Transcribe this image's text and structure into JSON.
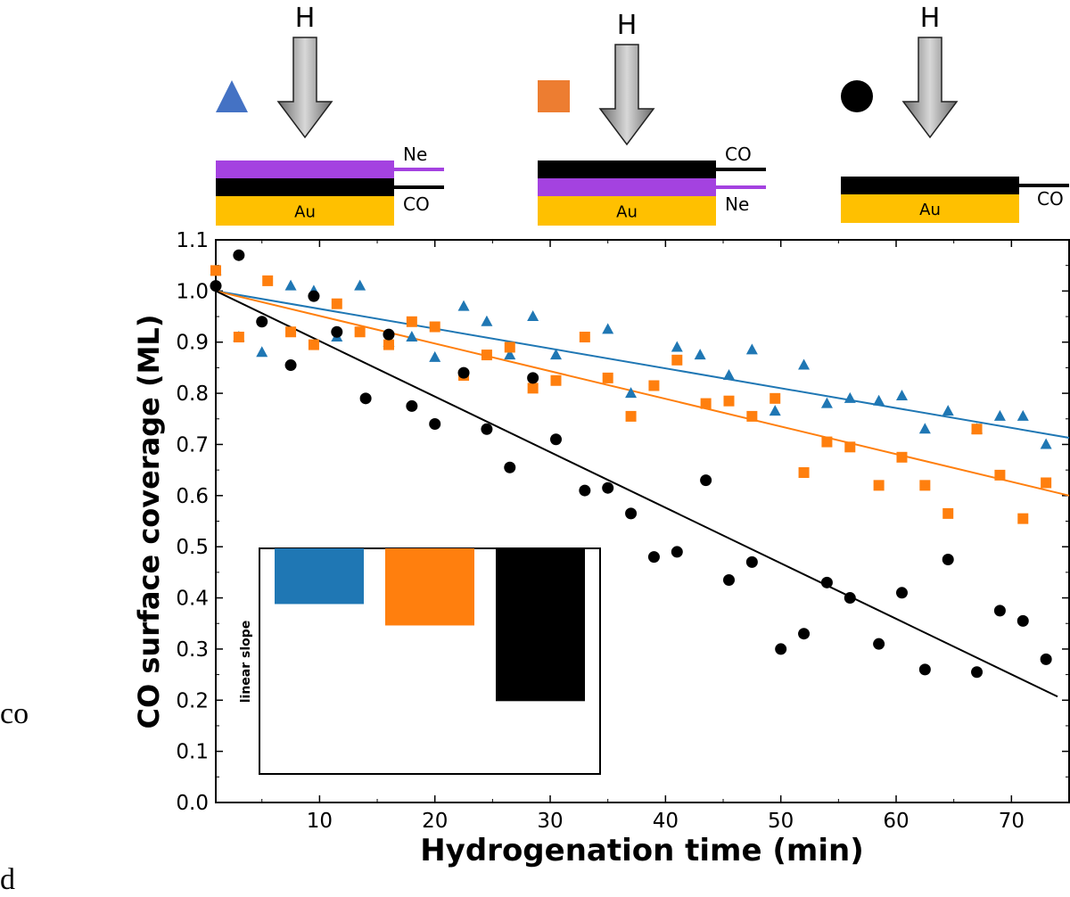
{
  "schematic": {
    "arrow_label": "H",
    "panels": [
      {
        "marker": "triangle",
        "marker_color": "#4472c4",
        "layers": [
          {
            "name": "Ne",
            "color": "#a442e0"
          },
          {
            "name": "CO",
            "color": "#000000"
          },
          {
            "name": "Au",
            "color": "#ffc000"
          }
        ]
      },
      {
        "marker": "square",
        "marker_color": "#ed7d31",
        "layers": [
          {
            "name": "CO",
            "color": "#000000"
          },
          {
            "name": "Ne",
            "color": "#a442e0"
          },
          {
            "name": "Au",
            "color": "#ffc000"
          }
        ]
      },
      {
        "marker": "circle",
        "marker_color": "#000000",
        "layers": [
          {
            "name": "CO",
            "color": "#000000"
          },
          {
            "name": "Au",
            "color": "#ffc000"
          }
        ]
      }
    ]
  },
  "chart_data": {
    "type": "scatter",
    "title": "",
    "xlabel": "Hydrogenation time (min)",
    "ylabel": "CO surface coverage (ML)",
    "xlim": [
      1,
      75
    ],
    "ylim": [
      0.0,
      1.1
    ],
    "xticks": [
      10,
      20,
      30,
      40,
      50,
      60,
      70
    ],
    "yticks": [
      "0.0",
      "0.1",
      "0.2",
      "0.3",
      "0.4",
      "0.5",
      "0.6",
      "0.7",
      "0.8",
      "0.9",
      "1.0",
      "1.1"
    ],
    "series": [
      {
        "name": "Ne on CO on Au",
        "marker": "triangle",
        "color": "#1f77b4",
        "x": [
          1,
          3,
          5,
          7.5,
          9.5,
          11.5,
          13.5,
          16,
          18,
          20,
          22.5,
          24.5,
          26.5,
          28.5,
          30.5,
          35,
          37,
          41,
          43,
          45.5,
          47.5,
          49.5,
          52,
          54,
          56,
          58.5,
          60.5,
          62.5,
          64.5,
          67,
          69,
          71,
          73
        ],
        "y": [
          1.04,
          0.91,
          0.88,
          1.01,
          1.0,
          0.91,
          1.01,
          0.9,
          0.91,
          0.87,
          0.97,
          0.94,
          0.875,
          0.95,
          0.875,
          0.925,
          0.8,
          0.89,
          0.875,
          0.835,
          0.885,
          0.765,
          0.855,
          0.78,
          0.79,
          0.785,
          0.795,
          0.73,
          0.765,
          0.73,
          0.755,
          0.755,
          0.7
        ],
        "fit": {
          "intercept": 1.0,
          "end_value": 0.713,
          "end_x": 75
        }
      },
      {
        "name": "CO on Ne on Au",
        "marker": "square",
        "color": "#ff7f0e",
        "x": [
          1,
          3,
          5.5,
          7.5,
          9.5,
          11.5,
          13.5,
          16,
          18,
          20,
          22.5,
          24.5,
          26.5,
          28.5,
          30.5,
          33,
          35,
          37,
          39,
          41,
          43.5,
          45.5,
          47.5,
          49.5,
          52,
          54,
          56,
          58.5,
          60.5,
          62.5,
          64.5,
          67,
          69,
          71,
          73
        ],
        "y": [
          1.04,
          0.91,
          1.02,
          0.92,
          0.895,
          0.975,
          0.92,
          0.895,
          0.94,
          0.93,
          0.835,
          0.875,
          0.89,
          0.81,
          0.825,
          0.91,
          0.83,
          0.755,
          0.815,
          0.865,
          0.78,
          0.785,
          0.755,
          0.79,
          0.645,
          0.705,
          0.695,
          0.62,
          0.675,
          0.62,
          0.565,
          0.73,
          0.64,
          0.555,
          0.625
        ],
        "fit": {
          "intercept": 1.0,
          "end_value": 0.6,
          "end_x": 75
        }
      },
      {
        "name": "CO on Au",
        "marker": "circle",
        "color": "#000000",
        "x": [
          1,
          3,
          5,
          7.5,
          9.5,
          11.5,
          14,
          16,
          18,
          20,
          22.5,
          24.5,
          26.5,
          28.5,
          30.5,
          33,
          35,
          37,
          39,
          41,
          43.5,
          45.5,
          47.5,
          50,
          52,
          54,
          56,
          58.5,
          60.5,
          62.5,
          64.5,
          67,
          69,
          71,
          73
        ],
        "y": [
          1.01,
          1.07,
          0.94,
          0.855,
          0.99,
          0.92,
          0.79,
          0.915,
          0.775,
          0.74,
          0.84,
          0.73,
          0.655,
          0.83,
          0.71,
          0.61,
          0.615,
          0.565,
          0.48,
          0.49,
          0.63,
          0.435,
          0.47,
          0.3,
          0.33,
          0.43,
          0.4,
          0.31,
          0.41,
          0.26,
          0.475,
          0.255,
          0.375,
          0.355,
          0.28
        ],
        "fit": {
          "intercept": 1.0,
          "end_value": 0.207,
          "end_x": 74
        }
      }
    ],
    "inset": {
      "type": "bar",
      "ylabel": "linear slope",
      "bars": [
        {
          "series": "Ne on CO on Au",
          "color": "#1f77b4",
          "value": -0.0039
        },
        {
          "series": "CO on Ne on Au",
          "color": "#ff7f0e",
          "value": -0.0054
        },
        {
          "series": "CO on Au",
          "color": "#000000",
          "value": -0.0107
        }
      ]
    }
  },
  "stray_text": [
    "co",
    "d"
  ]
}
